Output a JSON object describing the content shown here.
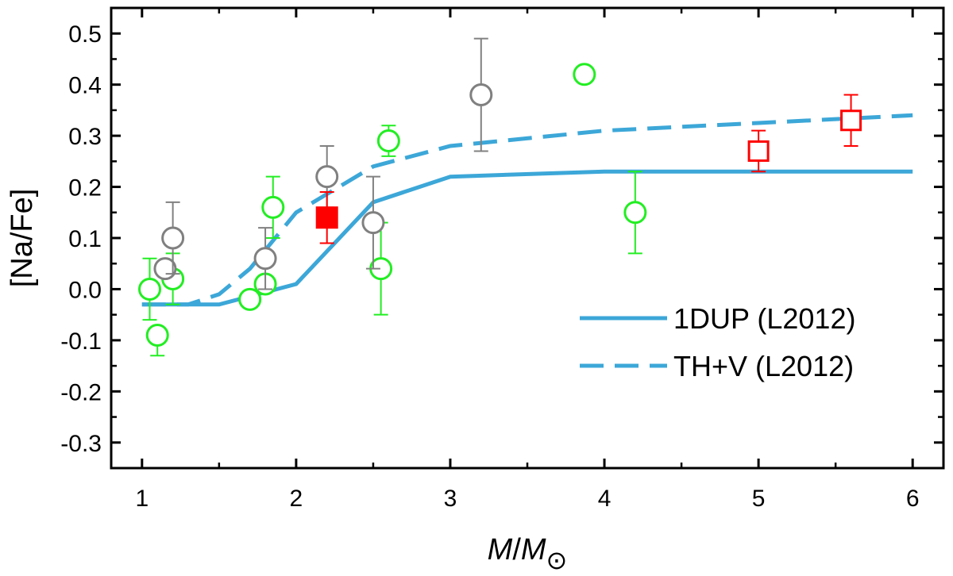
{
  "chart_data": {
    "type": "scatter",
    "title": "",
    "xlabel": {
      "italic_main": "M",
      "slash": "/",
      "italic_sub_main": "M",
      "subscript": "⊙"
    },
    "ylabel": "[Na/Fe]",
    "xlim": [
      0.8,
      6.2
    ],
    "ylim": [
      -0.35,
      0.55
    ],
    "xticks": [
      1,
      2,
      3,
      4,
      5,
      6
    ],
    "xtick_labels": [
      "1",
      "2",
      "3",
      "4",
      "5",
      "6"
    ],
    "yticks": [
      -0.3,
      -0.2,
      -0.1,
      0.0,
      0.1,
      0.2,
      0.3,
      0.4,
      0.5
    ],
    "ytick_labels": [
      "-0.3",
      "-0.2",
      "-0.1",
      "0.0",
      "0.1",
      "0.2",
      "0.3",
      "0.4",
      "0.5"
    ],
    "grid": false,
    "legend_position": "bottom-right",
    "colors": {
      "model_line": "#3ca7d8",
      "green": "#22ee22",
      "gray": "#808080",
      "red": "#ff0000"
    },
    "lines": [
      {
        "name": "1DUP (L2012)",
        "style": "solid",
        "x": [
          1.0,
          1.5,
          2.0,
          2.5,
          3.0,
          4.0,
          6.0
        ],
        "y": [
          -0.03,
          -0.03,
          0.01,
          0.17,
          0.22,
          0.23,
          0.23
        ]
      },
      {
        "name": "TH+V (L2012)",
        "style": "dashed",
        "x": [
          1.0,
          1.3,
          1.5,
          1.7,
          2.0,
          2.5,
          3.0,
          4.0,
          5.0,
          6.0
        ],
        "y": [
          -0.03,
          -0.03,
          -0.01,
          0.04,
          0.15,
          0.24,
          0.28,
          0.31,
          0.325,
          0.34
        ]
      }
    ],
    "scatter_series": [
      {
        "name": "green circles",
        "marker": "circle-open",
        "color_key": "green",
        "points": [
          {
            "x": 1.05,
            "y": 0.0,
            "err_up": 0.06,
            "err_down": 0.06
          },
          {
            "x": 1.1,
            "y": -0.09,
            "err_up": 0.0,
            "err_down": 0.04
          },
          {
            "x": 1.2,
            "y": 0.02,
            "err_up": 0.05,
            "err_down": 0.05
          },
          {
            "x": 1.7,
            "y": -0.02,
            "err_up": 0.0,
            "err_down": 0.0
          },
          {
            "x": 1.8,
            "y": 0.01,
            "err_up": 0.0,
            "err_down": 0.0
          },
          {
            "x": 1.85,
            "y": 0.16,
            "err_up": 0.06,
            "err_down": 0.06
          },
          {
            "x": 2.55,
            "y": 0.04,
            "err_up": 0.09,
            "err_down": 0.09
          },
          {
            "x": 2.6,
            "y": 0.29,
            "err_up": 0.03,
            "err_down": 0.03
          },
          {
            "x": 3.87,
            "y": 0.42,
            "err_up": 0.0,
            "err_down": 0.0
          },
          {
            "x": 4.2,
            "y": 0.15,
            "err_up": 0.08,
            "err_down": 0.08
          }
        ]
      },
      {
        "name": "gray circles",
        "marker": "circle-open",
        "color_key": "gray",
        "points": [
          {
            "x": 1.15,
            "y": 0.04,
            "err_up": 0.0,
            "err_down": 0.0
          },
          {
            "x": 1.2,
            "y": 0.1,
            "err_up": 0.07,
            "err_down": 0.07
          },
          {
            "x": 1.8,
            "y": 0.06,
            "err_up": 0.06,
            "err_down": 0.06
          },
          {
            "x": 2.2,
            "y": 0.22,
            "err_up": 0.06,
            "err_down": 0.06
          },
          {
            "x": 2.5,
            "y": 0.13,
            "err_up": 0.09,
            "err_down": 0.09
          },
          {
            "x": 3.2,
            "y": 0.38,
            "err_up": 0.11,
            "err_down": 0.11
          }
        ]
      },
      {
        "name": "red filled square",
        "marker": "square-filled",
        "color_key": "red",
        "points": [
          {
            "x": 2.2,
            "y": 0.14,
            "err_up": 0.05,
            "err_down": 0.05
          }
        ]
      },
      {
        "name": "red open squares",
        "marker": "square-open",
        "color_key": "red",
        "points": [
          {
            "x": 5.0,
            "y": 0.27,
            "err_up": 0.04,
            "err_down": 0.04
          },
          {
            "x": 5.6,
            "y": 0.33,
            "err_up": 0.05,
            "err_down": 0.05
          }
        ]
      }
    ]
  }
}
